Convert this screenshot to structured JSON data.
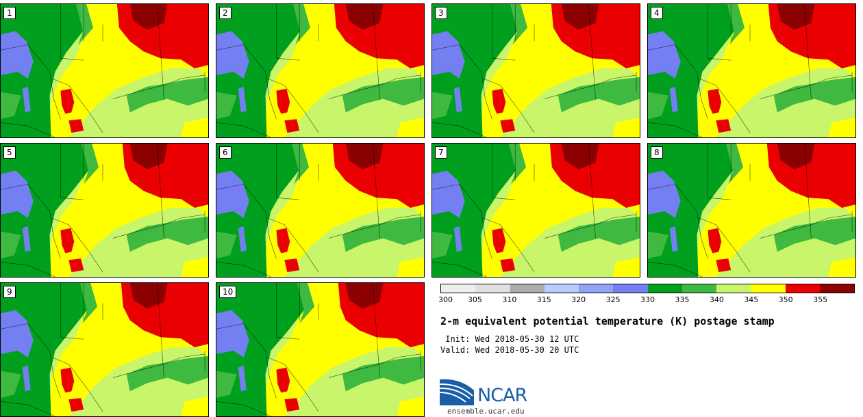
{
  "stamps": [
    {
      "label": "1"
    },
    {
      "label": "2"
    },
    {
      "label": "3"
    },
    {
      "label": "4"
    },
    {
      "label": "5"
    },
    {
      "label": "6"
    },
    {
      "label": "7"
    },
    {
      "label": "8"
    },
    {
      "label": "9"
    },
    {
      "label": "10"
    }
  ],
  "colorbar": {
    "colors": [
      "#efefef",
      "#e0e0e0",
      "#ababab",
      "#b7cdfd",
      "#8fa4f5",
      "#7480f2",
      "#00a01e",
      "#3fb93f",
      "#c8f56a",
      "#ffff00",
      "#ea0000",
      "#8b0000"
    ],
    "ticks": [
      "300",
      "305",
      "310",
      "315",
      "320",
      "325",
      "330",
      "335",
      "340",
      "345",
      "350",
      "355"
    ]
  },
  "map_colors": {
    "blue": "#7480f2",
    "dark_green": "#00a01e",
    "mid_green": "#3fb93f",
    "light_green": "#c8f56a",
    "yellow": "#ffff00",
    "red": "#ea0000",
    "dark_red": "#8b0000"
  },
  "title": "2-m equivalent potential temperature (K) postage stamp",
  "init_line": " Init: Wed 2018-05-30 12 UTC",
  "valid_line": "Valid: Wed 2018-05-30 20 UTC",
  "logo": {
    "text": "NCAR",
    "url_text": "ensemble.ucar.edu"
  }
}
